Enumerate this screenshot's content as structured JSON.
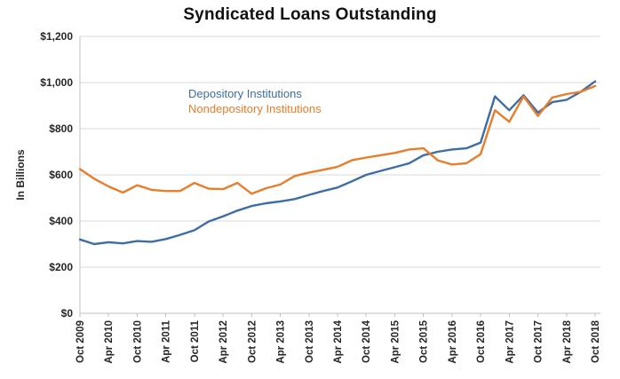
{
  "title": "Syndicated Loans Outstanding",
  "y_axis": {
    "title": "In Billions",
    "ticks": [
      {
        "label": "$0",
        "value": 0
      },
      {
        "label": "$200",
        "value": 200
      },
      {
        "label": "$400",
        "value": 400
      },
      {
        "label": "$600",
        "value": 600
      },
      {
        "label": "$800",
        "value": 800
      },
      {
        "label": "$1,000",
        "value": 1000
      },
      {
        "label": "$1,200",
        "value": 1200
      }
    ]
  },
  "x_axis": {
    "tick_labels": [
      "Oct 2009",
      "Apr 2010",
      "Oct 2010",
      "Apr 2011",
      "Oct 2011",
      "Apr 2012",
      "Oct 2012",
      "Apr 2013",
      "Oct 2013",
      "Apr 2014",
      "Oct 2014",
      "Apr 2015",
      "Oct 2015",
      "Apr 2016",
      "Oct 2016",
      "Apr 2017",
      "Oct 2017",
      "Apr 2018",
      "Oct 2018"
    ]
  },
  "legend": {
    "items": [
      {
        "label": "Depository Institutions",
        "color": "#3E6DA5"
      },
      {
        "label": "Nondepository Institutions",
        "color": "#E87D2B"
      }
    ]
  },
  "colors": {
    "depository_line": "#3E6DA5",
    "nondepository_line": "#E87D2B",
    "gridline": "#D9D9D9",
    "axis_line": "#BFBFBF",
    "tick_label": "#262626",
    "title_text": "#111111"
  },
  "chart_data": {
    "type": "line",
    "title": "Syndicated Loans Outstanding",
    "xlabel": "",
    "ylabel": "In Billions",
    "ylim": [
      0,
      1200
    ],
    "y_tick_step": 200,
    "grid": "horizontal",
    "legend_position": "inside-top-left",
    "x_label_interval": 2,
    "categories": [
      "Oct 2009",
      "Jan 2010",
      "Apr 2010",
      "Jul 2010",
      "Oct 2010",
      "Jan 2011",
      "Apr 2011",
      "Jul 2011",
      "Oct 2011",
      "Jan 2012",
      "Apr 2012",
      "Jul 2012",
      "Oct 2012",
      "Jan 2013",
      "Apr 2013",
      "Jul 2013",
      "Oct 2013",
      "Jan 2014",
      "Apr 2014",
      "Jul 2014",
      "Oct 2014",
      "Jan 2015",
      "Apr 2015",
      "Jul 2015",
      "Oct 2015",
      "Jan 2016",
      "Apr 2016",
      "Jul 2016",
      "Oct 2016",
      "Jan 2017",
      "Apr 2017",
      "Jul 2017",
      "Oct 2017",
      "Jan 2018",
      "Apr 2018",
      "Jul 2018",
      "Oct 2018"
    ],
    "series": [
      {
        "name": "Depository Institutions",
        "color": "#3E6DA5",
        "values": [
          320,
          300,
          308,
          303,
          313,
          310,
          322,
          340,
          360,
          398,
          420,
          445,
          465,
          477,
          485,
          495,
          513,
          530,
          545,
          572,
          600,
          617,
          633,
          650,
          685,
          700,
          710,
          715,
          740,
          940,
          880,
          945,
          870,
          915,
          925,
          960,
          1005
        ]
      },
      {
        "name": "Nondepository Institutions",
        "color": "#E87D2B",
        "values": [
          625,
          583,
          550,
          523,
          555,
          535,
          530,
          530,
          565,
          540,
          538,
          565,
          518,
          542,
          558,
          595,
          610,
          622,
          635,
          663,
          675,
          685,
          695,
          710,
          715,
          663,
          645,
          650,
          690,
          880,
          830,
          940,
          855,
          935,
          950,
          960,
          985
        ]
      }
    ]
  }
}
